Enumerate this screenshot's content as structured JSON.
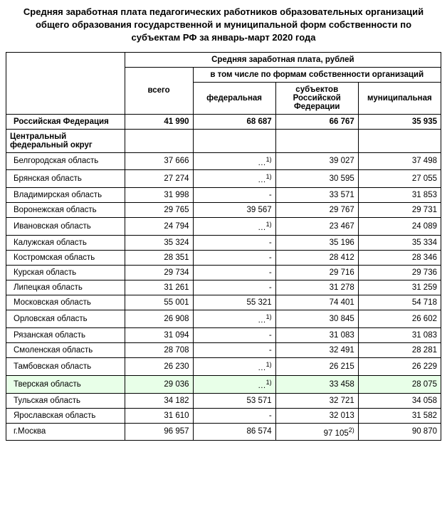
{
  "title": "Средняя заработная плата педагогических работников образовательных организаций общего образования государственной и муниципальной форм собственности по субъектам РФ за январь-март 2020 года",
  "header": {
    "main": "Средняя заработная плата, рублей",
    "sub": "в том числе по формам собственности организаций",
    "col1": "всего",
    "col2": "федеральная",
    "col3": "субъектов Российской Федерации",
    "col4": "муниципальная"
  },
  "total": {
    "label": "Российская Федерация",
    "c1": "41 990",
    "c2": "68 687",
    "c3": "66 767",
    "c4": "35 935"
  },
  "district": {
    "label": "Центральный федеральный округ"
  },
  "rows": [
    {
      "label": "Белгородская область",
      "c1": "37 666",
      "c2": "…",
      "note2": "1)",
      "c3": "39 027",
      "c4": "37 498"
    },
    {
      "label": "Брянская область",
      "c1": "27 274",
      "c2": "…",
      "note2": "1)",
      "c3": "30 595",
      "c4": "27 055"
    },
    {
      "label": "Владимирская область",
      "c1": "31 998",
      "c2": "-",
      "c3": "33 571",
      "c4": "31 853"
    },
    {
      "label": "Воронежская область",
      "c1": "29 765",
      "c2": "39 567",
      "c3": "29 767",
      "c4": "29 731"
    },
    {
      "label": "Ивановская область",
      "c1": "24 794",
      "c2": "…",
      "note2": "1)",
      "c3": "23 467",
      "c4": "24 089"
    },
    {
      "label": "Калужская область",
      "c1": "35 324",
      "c2": "-",
      "c3": "35 196",
      "c4": "35 334"
    },
    {
      "label": "Костромская область",
      "c1": "28 351",
      "c2": "-",
      "c3": "28 412",
      "c4": "28 346"
    },
    {
      "label": "Курская область",
      "c1": "29 734",
      "c2": "-",
      "c3": "29 716",
      "c4": "29 736"
    },
    {
      "label": "Липецкая область",
      "c1": "31 261",
      "c2": "-",
      "c3": "31 278",
      "c4": "31 259"
    },
    {
      "label": "Московская область",
      "c1": "55 001",
      "c2": "55 321",
      "c3": "74 401",
      "c4": "54 718"
    },
    {
      "label": "Орловская область",
      "c1": "26 908",
      "c2": "…",
      "note2": "1)",
      "c3": "30 845",
      "c4": "26 602"
    },
    {
      "label": "Рязанская область",
      "c1": "31 094",
      "c2": "-",
      "c3": "31 083",
      "c4": "31 083"
    },
    {
      "label": "Смоленская область",
      "c1": "28 708",
      "c2": "-",
      "c3": "32 491",
      "c4": "28 281"
    },
    {
      "label": "Тамбовская область",
      "c1": "26 230",
      "c2": "…",
      "note2": "1)",
      "c3": "26 215",
      "c4": "26 229"
    },
    {
      "label": "Тверская область",
      "c1": "29 036",
      "c2": "…",
      "note2": "1)",
      "c3": "33 458",
      "c4": "28 075",
      "hl": true
    },
    {
      "label": "Тульская область",
      "c1": "34 182",
      "c2": "53 571",
      "c3": "32 721",
      "c4": "34 058"
    },
    {
      "label": "Ярославская область",
      "c1": "31 610",
      "c2": "-",
      "c3": "32 013",
      "c4": "31 582"
    },
    {
      "label": "г.Москва",
      "c1": "96 957",
      "c2": "86 574",
      "c3": "97 105",
      "note3": "2)",
      "c4": "90 870"
    }
  ]
}
